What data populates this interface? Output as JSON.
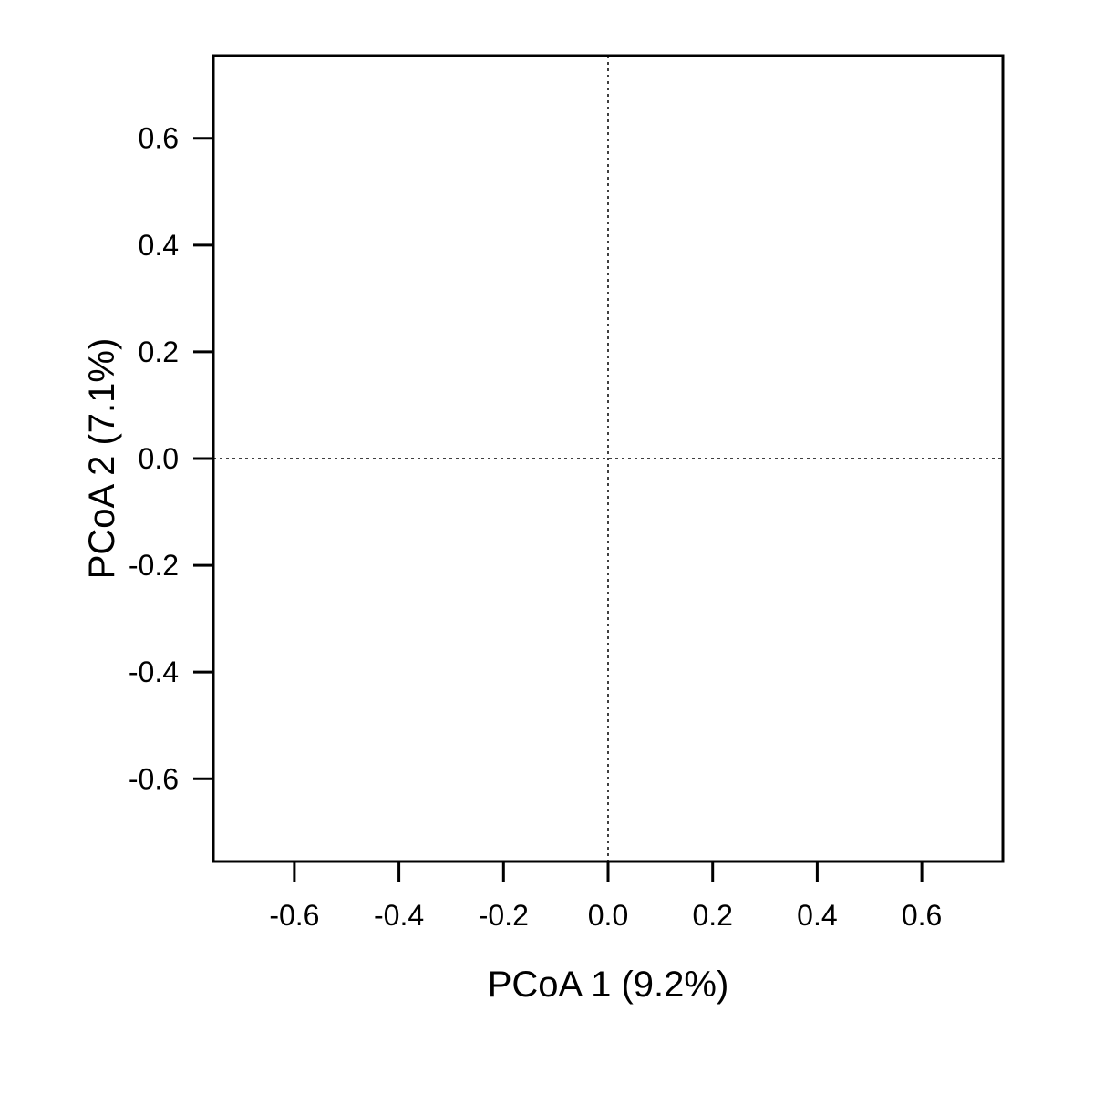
{
  "chart_data": {
    "type": "scatter",
    "title": "",
    "xlabel": "PCoA 1 (9.2%)",
    "ylabel": "PCoA 2 (7.1%)",
    "xlim": [
      -0.755,
      0.755
    ],
    "ylim": [
      -0.755,
      0.755
    ],
    "xticks": [
      "-0.6",
      "-0.4",
      "-0.2",
      "0.0",
      "0.2",
      "0.4",
      "0.6"
    ],
    "yticks": [
      "-0.6",
      "-0.4",
      "-0.2",
      "0.0",
      "0.2",
      "0.4",
      "0.6"
    ],
    "reference_lines": {
      "x": 0,
      "y": 0,
      "style": "dotted"
    },
    "grid": false,
    "series": [],
    "colors": {
      "axis": "#000000",
      "background": "#ffffff"
    }
  }
}
